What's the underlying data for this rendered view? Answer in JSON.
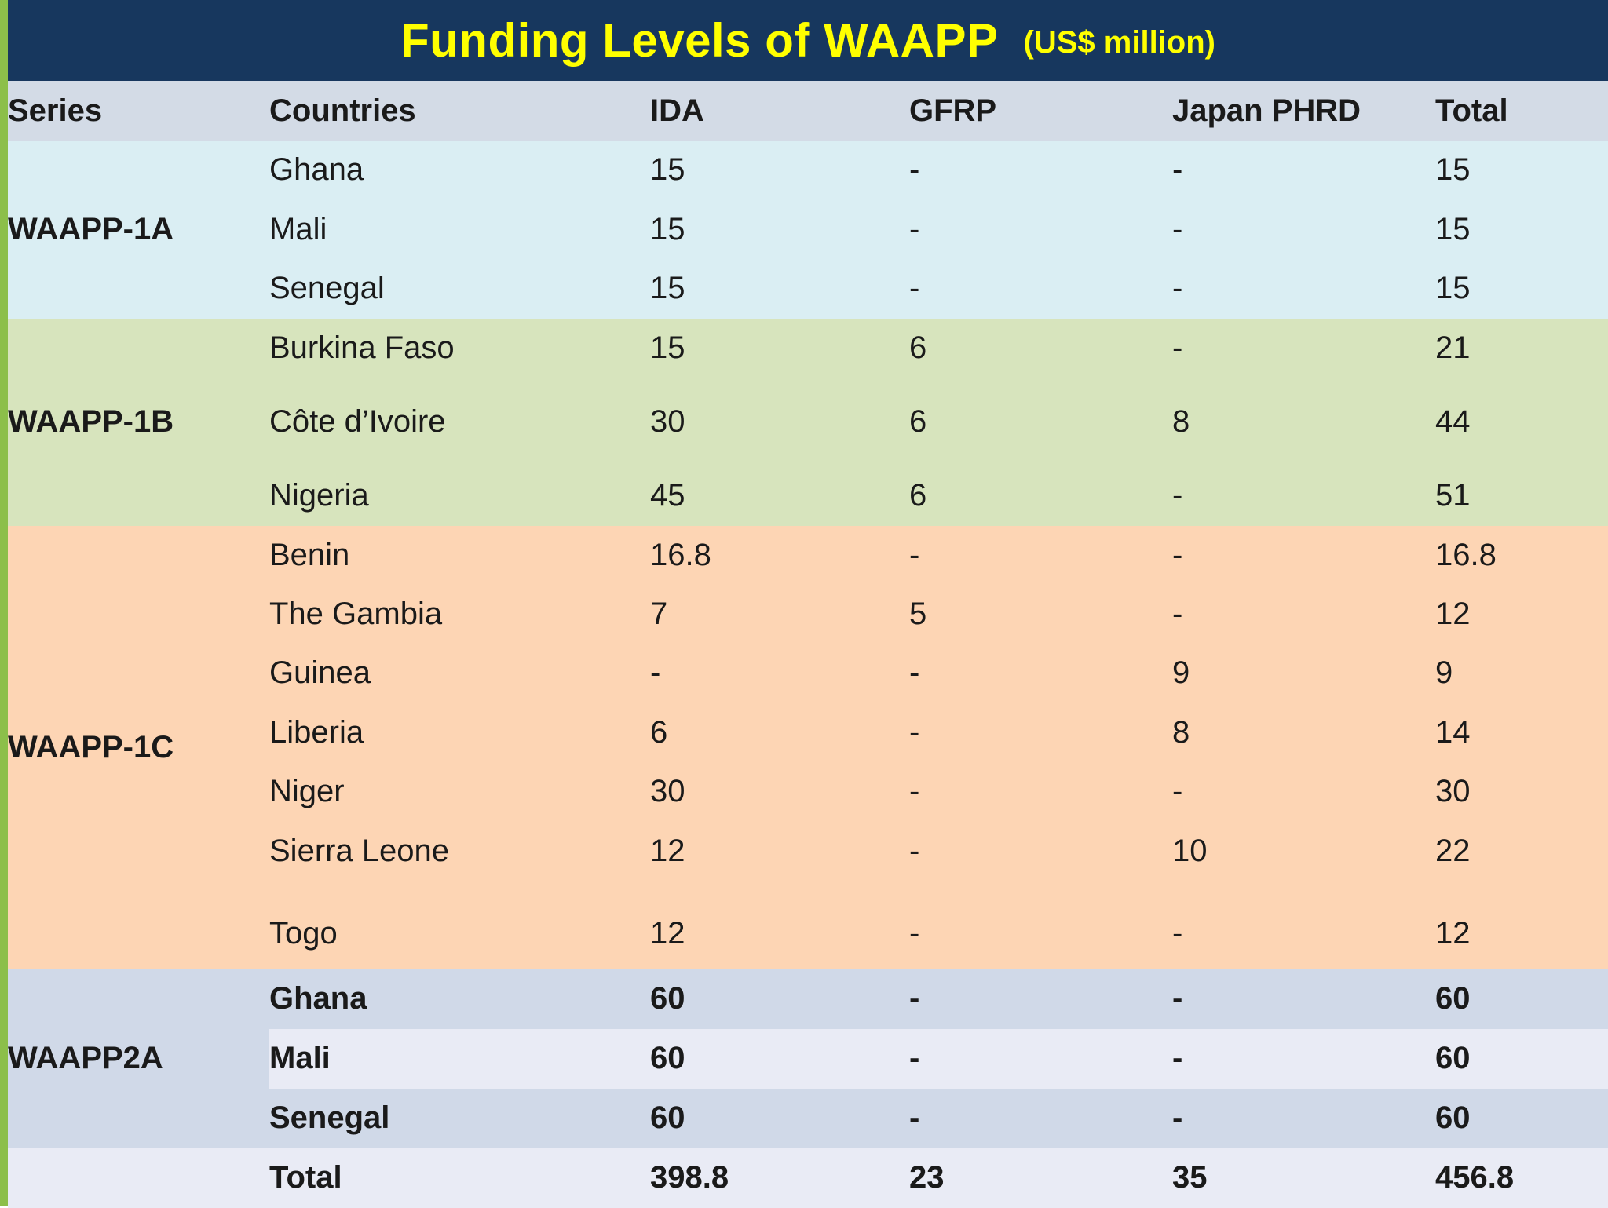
{
  "title": {
    "main": "Funding Levels of WAAPP",
    "unit": "(US$ million)"
  },
  "headers": {
    "series": "Series",
    "countries": "Countries",
    "ida": "IDA",
    "gfrp": "GFRP",
    "japan": "Japan PHRD",
    "total": "Total"
  },
  "groups": [
    {
      "series": "WAAPP-1A",
      "rows": [
        {
          "country": "Ghana",
          "ida": "15",
          "gfrp": "-",
          "japan": "-",
          "total": "15"
        },
        {
          "country": "Mali",
          "ida": "15",
          "gfrp": "-",
          "japan": "-",
          "total": "15"
        },
        {
          "country": "Senegal",
          "ida": "15",
          "gfrp": "-",
          "japan": "-",
          "total": "15"
        }
      ]
    },
    {
      "series": "WAAPP-1B",
      "rows": [
        {
          "country": "Burkina Faso",
          "ida": "15",
          "gfrp": "6",
          "japan": "-",
          "total": "21"
        },
        {
          "country": "Côte d’Ivoire",
          "ida": "30",
          "gfrp": "6",
          "japan": "8",
          "total": "44"
        },
        {
          "country": "Nigeria",
          "ida": "45",
          "gfrp": "6",
          "japan": "-",
          "total": "51"
        }
      ]
    },
    {
      "series": "WAAPP-1C",
      "rows": [
        {
          "country": "Benin",
          "ida": "16.8",
          "gfrp": "-",
          "japan": "-",
          "total": "16.8"
        },
        {
          "country": "The Gambia",
          "ida": "7",
          "gfrp": "5",
          "japan": "-",
          "total": "12"
        },
        {
          "country": "Guinea",
          "ida": "-",
          "gfrp": "-",
          "japan": "9",
          "total": "9"
        },
        {
          "country": "Liberia",
          "ida": "6",
          "gfrp": "-",
          "japan": "8",
          "total": "14"
        },
        {
          "country": "Niger",
          "ida": "30",
          "gfrp": "-",
          "japan": "-",
          "total": "30"
        },
        {
          "country": "Sierra Leone",
          "ida": "12",
          "gfrp": "-",
          "japan": "10",
          "total": "22"
        },
        {
          "country": "Togo",
          "ida": "12",
          "gfrp": "-",
          "japan": "-",
          "total": "12"
        }
      ]
    },
    {
      "series": "WAAPP2A",
      "rows": [
        {
          "country": "Ghana",
          "ida": "60",
          "gfrp": "-",
          "japan": "-",
          "total": "60"
        },
        {
          "country": "Mali",
          "ida": "60",
          "gfrp": "-",
          "japan": "-",
          "total": "60"
        },
        {
          "country": "Senegal",
          "ida": "60",
          "gfrp": "-",
          "japan": "-",
          "total": "60"
        }
      ]
    }
  ],
  "totals": {
    "label": "Total",
    "ida": "398.8",
    "gfrp": "23",
    "japan": "35",
    "total": "456.8"
  },
  "colors": {
    "title_bg": "#17375e",
    "title_text": "#ffff00",
    "header_bg": "#d3dbe6",
    "waapp1a_bg": "#daeef3",
    "waapp1b_bg": "#d7e4bd",
    "waapp1c_bg": "#fdd5b4",
    "waapp2a_bg": "#d0d9e8",
    "waapp2a_alt_bg": "#e9ebf5",
    "total_bg": "#e9ebf5",
    "accent": "#8cbf4a"
  }
}
